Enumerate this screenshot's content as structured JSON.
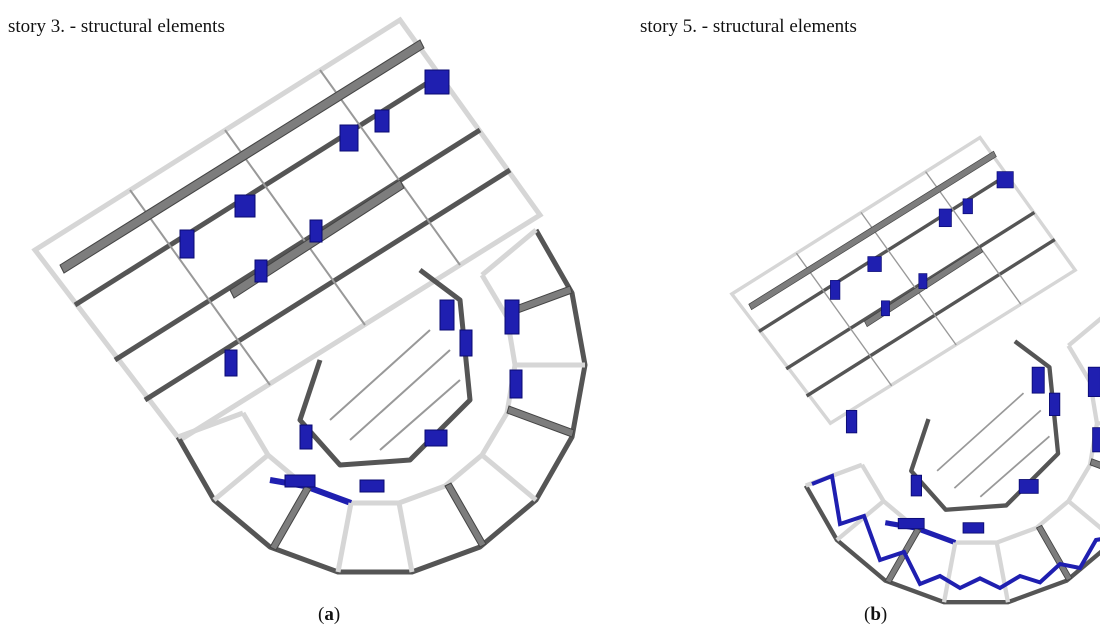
{
  "panels": [
    {
      "title": "story 3. - structural elements",
      "caption": {
        "prefix": "(",
        "letter": "a",
        "suffix": ")"
      }
    },
    {
      "title": "story 5. - structural elements",
      "caption": {
        "prefix": "(",
        "letter": "b",
        "suffix": ")"
      }
    }
  ]
}
